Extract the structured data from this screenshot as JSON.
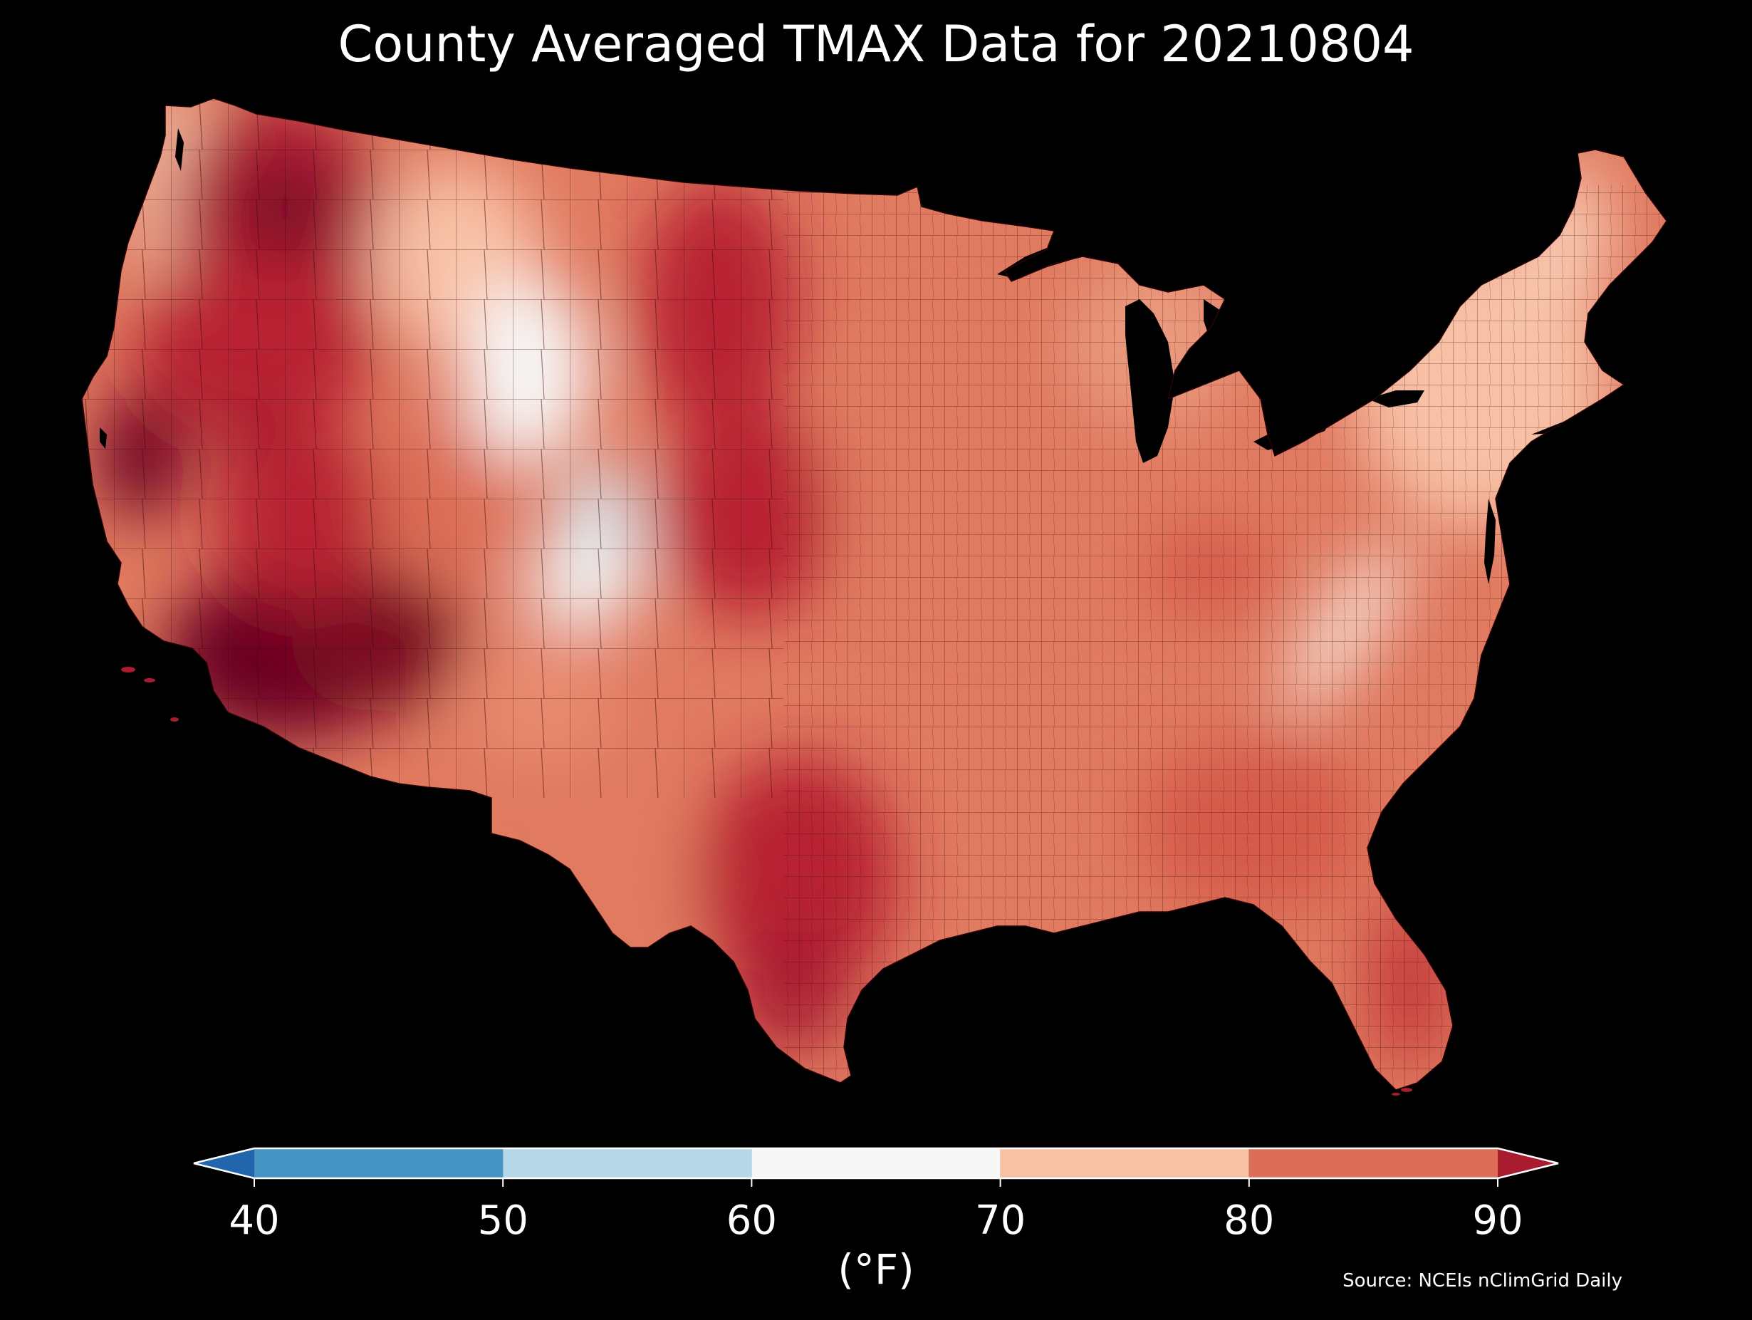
{
  "title": "County Averaged TMAX Data for 20210804",
  "colorbar": {
    "ticks": [
      "40",
      "50",
      "60",
      "70",
      "80",
      "90"
    ],
    "unit": "(°F)",
    "bins": [
      {
        "from": null,
        "to": 40,
        "color": "#2166ac"
      },
      {
        "from": 40,
        "to": 50,
        "color": "#4393c3"
      },
      {
        "from": 50,
        "to": 60,
        "color": "#b6d7e8"
      },
      {
        "from": 60,
        "to": 70,
        "color": "#f7f7f7"
      },
      {
        "from": 70,
        "to": 80,
        "color": "#f8c1a6"
      },
      {
        "from": 80,
        "to": 90,
        "color": "#dc6e57"
      },
      {
        "from": 90,
        "to": null,
        "color": "#a91c30"
      }
    ],
    "extend": "both"
  },
  "source": "Source: NCEIs nClimGrid Daily",
  "map": {
    "region": "Contiguous United States",
    "variable": "TMAX",
    "date": "20210804",
    "palette": {
      "cool": "#d6e8f3",
      "neutral": "#f7f7f7",
      "warm_light": "#f8c1a6",
      "warm": "#e07a60",
      "hot": "#c53a3a",
      "very_hot": "#a91c30",
      "extreme": "#6b0020",
      "county_border": "#3a0a0a"
    }
  }
}
